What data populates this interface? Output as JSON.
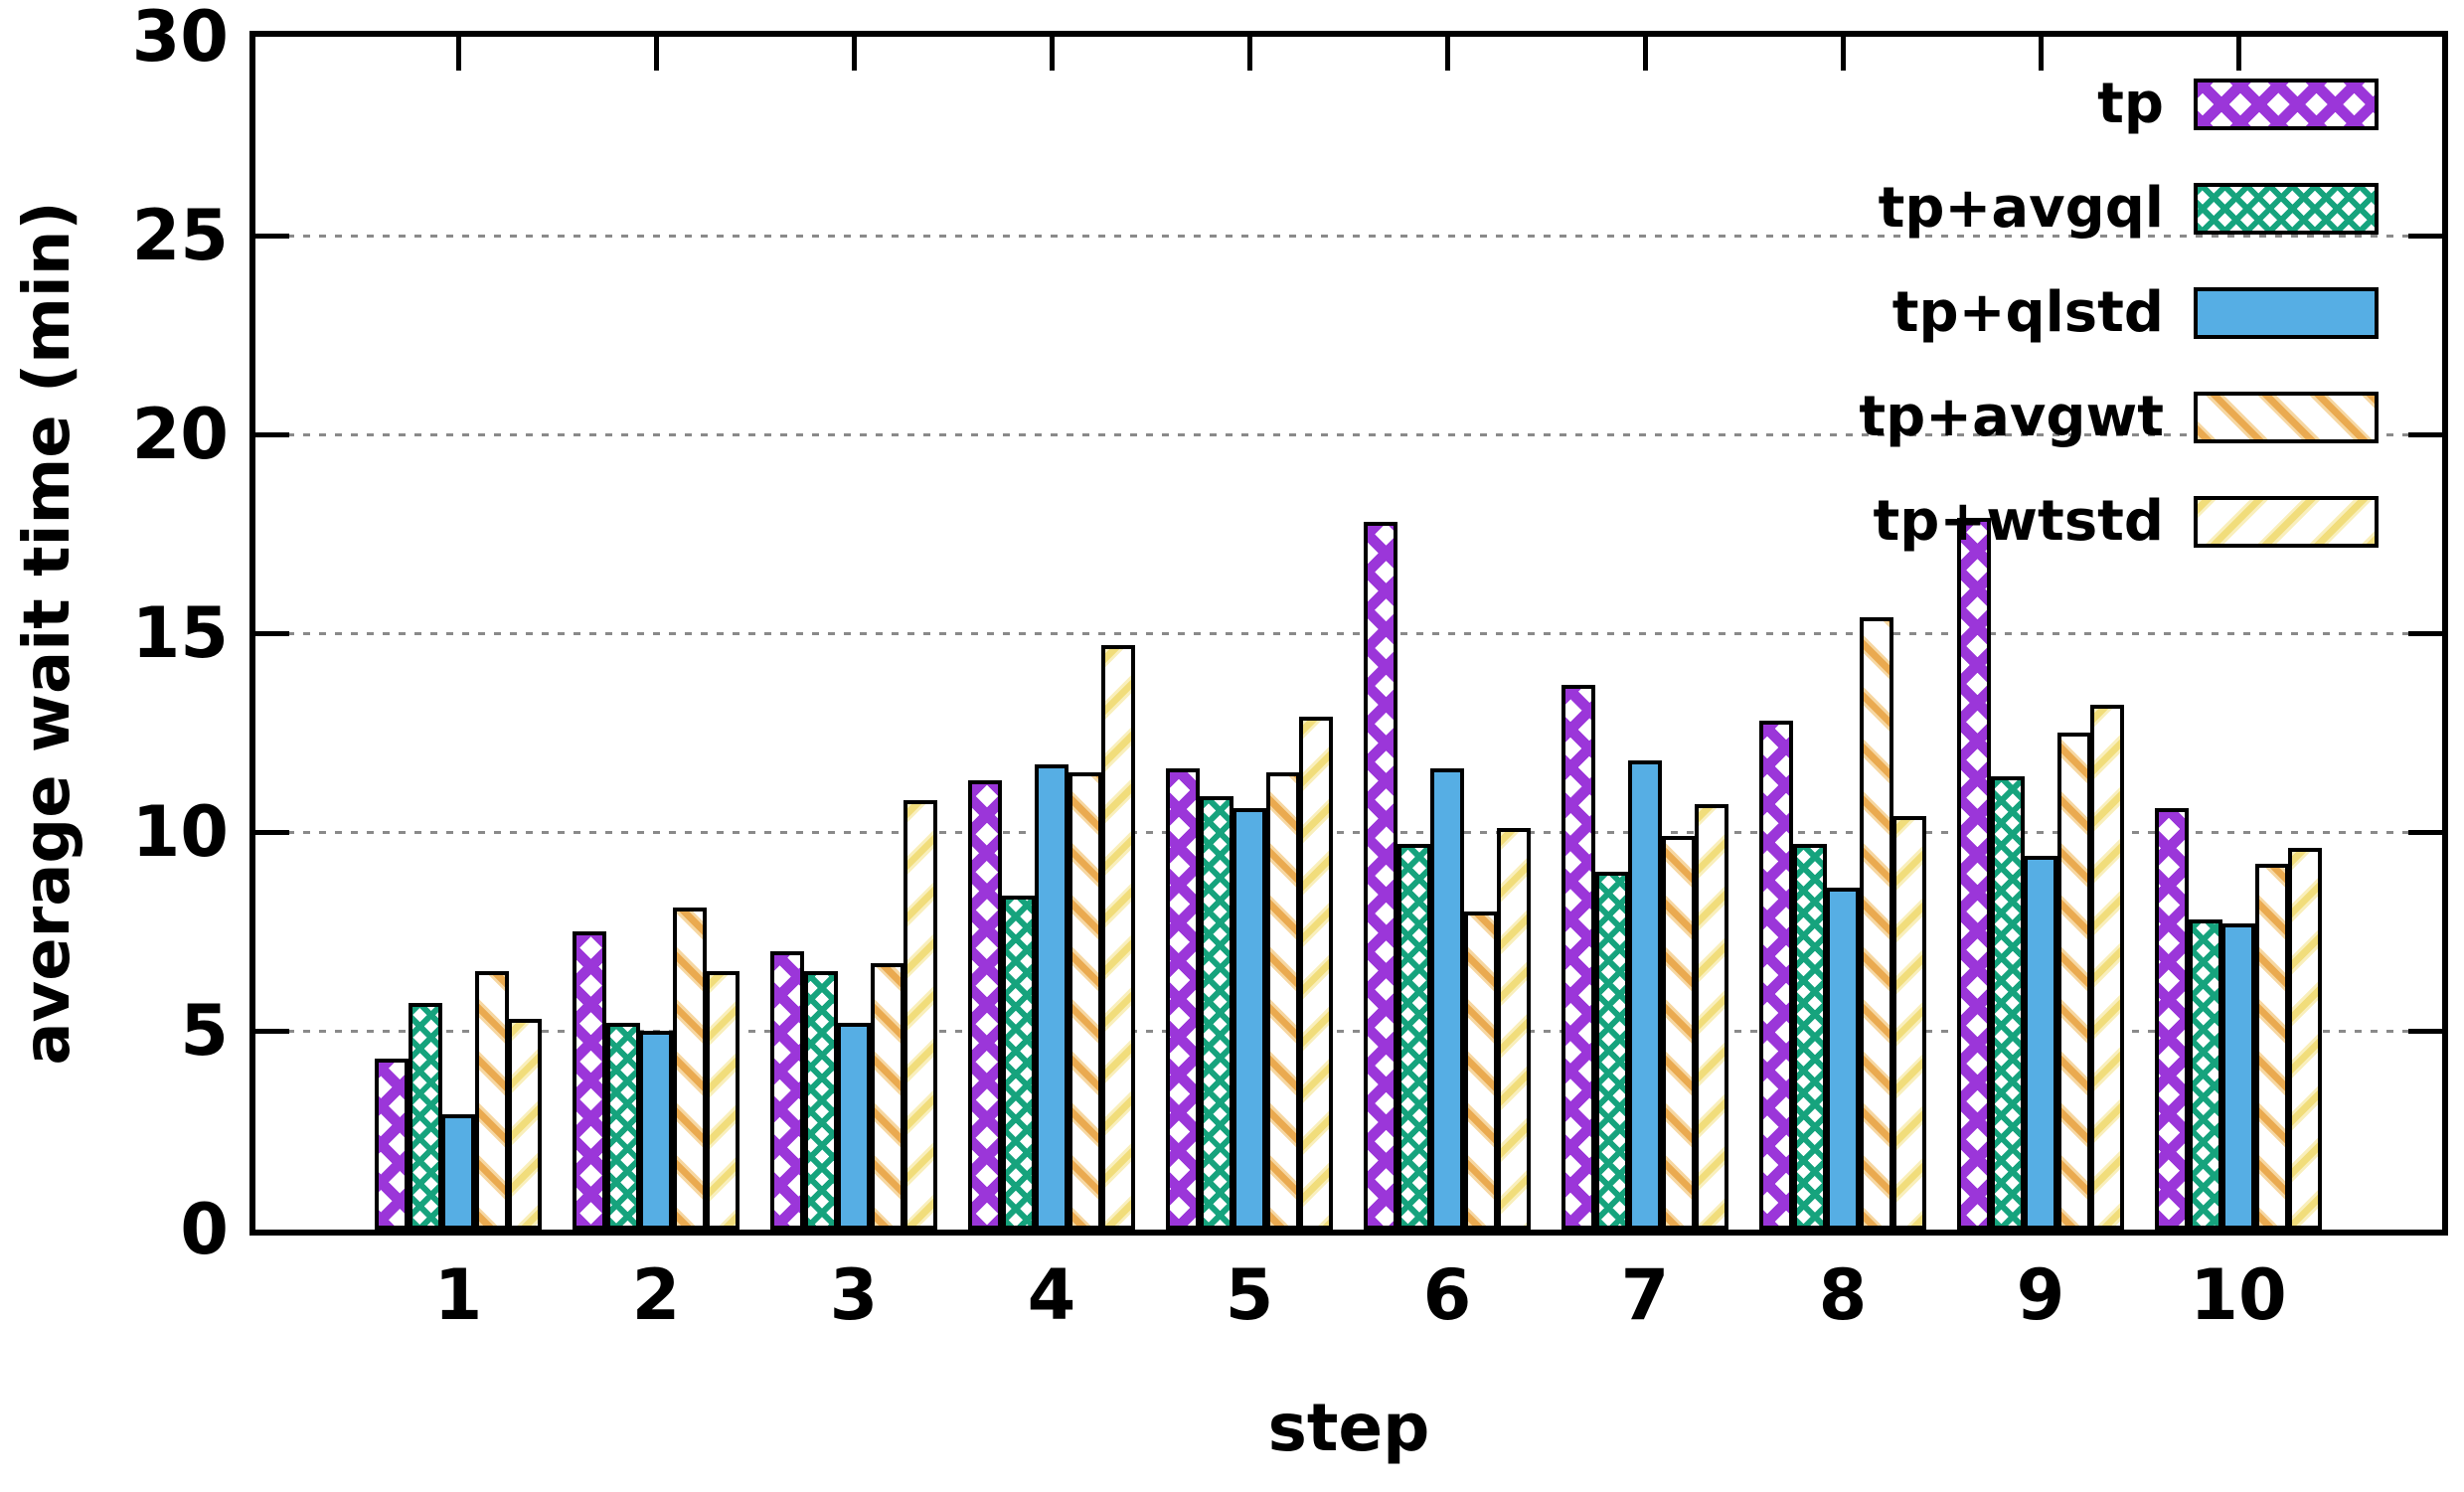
{
  "figure": {
    "background": "#ffffff",
    "frame_color": "#000000",
    "grid_color": "#8a8a8a"
  },
  "chart_data": {
    "type": "bar",
    "title": "",
    "xlabel": "step",
    "ylabel": "average wait time (min)",
    "categories": [
      "1",
      "2",
      "3",
      "4",
      "5",
      "6",
      "7",
      "8",
      "9",
      "10"
    ],
    "ylim": [
      0,
      30
    ],
    "yticks": [
      0,
      5,
      10,
      15,
      20,
      25,
      30
    ],
    "grid": "horizontal dotted at 5,10,15,20,25",
    "legend_position": "top-right",
    "series": [
      {
        "name": "tp",
        "pattern": "crosshatch-wide",
        "color": "#9b36d9",
        "color_light": "#c98ae8",
        "values": [
          4.3,
          7.5,
          7.0,
          11.3,
          11.6,
          17.8,
          13.7,
          12.8,
          17.9,
          10.6
        ]
      },
      {
        "name": "tp+avgql",
        "pattern": "crosshatch-fine",
        "color": "#16a37d",
        "color_light": "#7fd0b8",
        "values": [
          5.7,
          5.2,
          6.5,
          8.4,
          10.9,
          9.7,
          9.0,
          9.7,
          11.4,
          7.8
        ]
      },
      {
        "name": "tp+qlstd",
        "pattern": "solid",
        "color": "#56aee4",
        "color_light": "#56aee4",
        "values": [
          2.9,
          5.0,
          5.2,
          11.7,
          10.6,
          11.6,
          11.8,
          8.6,
          9.4,
          7.7
        ]
      },
      {
        "name": "tp+avgwt",
        "pattern": "diag-down",
        "color": "#eaaa50",
        "color_light": "#f6d7a2",
        "values": [
          6.5,
          8.1,
          6.7,
          11.5,
          11.5,
          8.0,
          9.9,
          15.4,
          12.5,
          9.2
        ]
      },
      {
        "name": "tp+wtstd",
        "pattern": "diag-up",
        "color": "#f1dd7b",
        "color_light": "#f9efbc",
        "values": [
          5.3,
          6.5,
          10.8,
          14.7,
          12.9,
          10.1,
          10.7,
          10.4,
          13.2,
          9.6
        ]
      }
    ]
  }
}
